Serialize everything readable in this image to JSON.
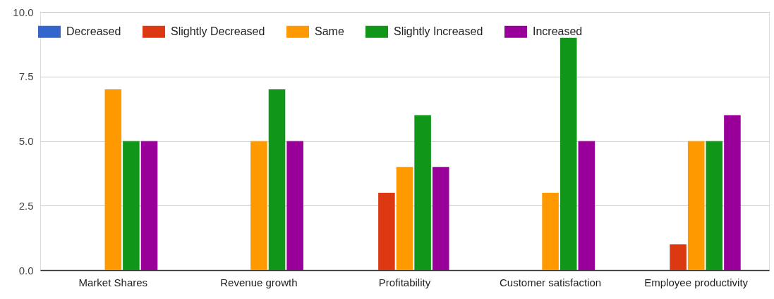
{
  "chart_data": {
    "type": "bar",
    "categories": [
      "Market Shares",
      "Revenue growth",
      "Profitability",
      "Customer satisfaction",
      "Employee productivity"
    ],
    "series": [
      {
        "name": "Decreased",
        "color": "#3366cc",
        "values": [
          0,
          0,
          0,
          0,
          0
        ]
      },
      {
        "name": "Slightly Decreased",
        "color": "#dc3912",
        "values": [
          0,
          0,
          3,
          0,
          1
        ]
      },
      {
        "name": "Same",
        "color": "#ff9900",
        "values": [
          7,
          5,
          4,
          3,
          5
        ]
      },
      {
        "name": "Slightly Increased",
        "color": "#109618",
        "values": [
          5,
          7,
          6,
          9,
          5
        ]
      },
      {
        "name": "Increased",
        "color": "#990099",
        "values": [
          5,
          5,
          4,
          5,
          6
        ]
      }
    ],
    "ylim": [
      0,
      10
    ],
    "yticks": [
      {
        "value": 0,
        "label": "0.0"
      },
      2.5,
      {
        "value": 5,
        "label": "5.0"
      },
      7.5,
      {
        "value": 10,
        "label": "10.0"
      }
    ],
    "grid": "y",
    "legend": "top left"
  }
}
